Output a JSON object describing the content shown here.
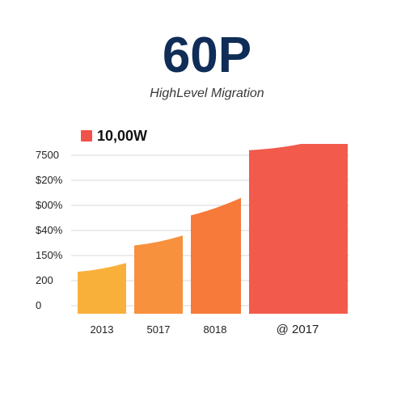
{
  "header": {
    "title": "60P",
    "subtitle": "HighLevel Migration"
  },
  "legend": {
    "label": "10,00W",
    "color": "#f0524a"
  },
  "colors": {
    "title": "#0f2d57",
    "gridline": "#d9d9d9",
    "bars": [
      "#f9b03a",
      "#f7913d",
      "#f77a3a",
      "#f25a4c"
    ]
  },
  "chart_data": {
    "type": "area",
    "title": "60P",
    "subtitle": "HighLevel Migration",
    "xlabel": "",
    "ylabel": "",
    "y_tick_labels": [
      "7500",
      "$20%",
      "$00%",
      "$40%",
      "150%",
      "200",
      "0"
    ],
    "ylim": [
      0,
      6
    ],
    "grid": true,
    "legend_position": "top-left",
    "categories": [
      "2013",
      "5017",
      "8018",
      "@ 2017"
    ],
    "series": [
      {
        "name": "10,00W",
        "segments": [
          {
            "category": "2013",
            "start": 1.35,
            "end": 1.7
          },
          {
            "category": "5017",
            "start": 2.4,
            "end": 2.8
          },
          {
            "category": "8018",
            "start": 3.6,
            "end": 4.3
          },
          {
            "category": "@ 2017",
            "start": 6.2,
            "end": 6.45
          }
        ]
      }
    ]
  }
}
